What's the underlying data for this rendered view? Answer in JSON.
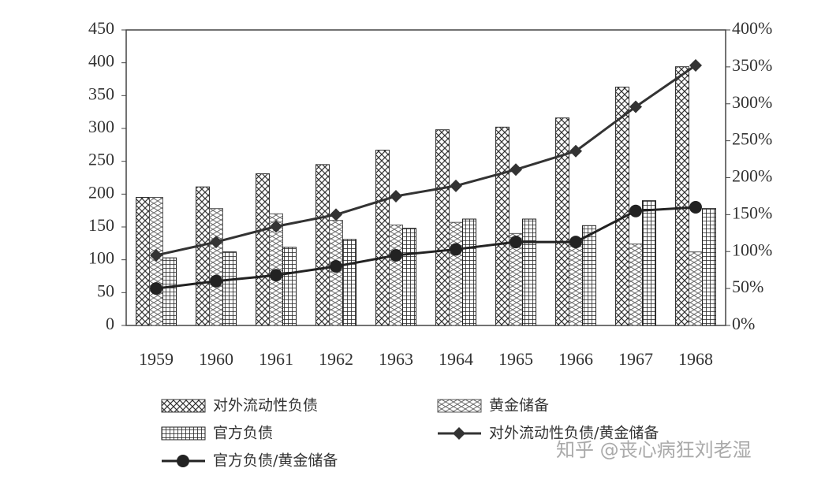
{
  "chart_data": {
    "type": "bar",
    "categories": [
      "1959",
      "1960",
      "1961",
      "1962",
      "1963",
      "1964",
      "1965",
      "1966",
      "1967",
      "1968"
    ],
    "series": [
      {
        "name": "对外流动性负债",
        "color": "#333333",
        "values": [
          195,
          211,
          231,
          245,
          267,
          298,
          302,
          316,
          363,
          394
        ]
      },
      {
        "name": "黄金储备",
        "color": "#555555",
        "values": [
          195,
          178,
          170,
          160,
          153,
          157,
          140,
          130,
          124,
          112
        ]
      },
      {
        "name": "官方负债",
        "color": "#222222",
        "values": [
          103,
          112,
          119,
          131,
          148,
          162,
          162,
          152,
          190,
          178
        ]
      },
      {
        "name": "对外流动性负债/黄金储备",
        "type": "line",
        "marker": "diamond",
        "axis": "y2",
        "color": "#333333",
        "values": [
          95,
          113,
          134,
          150,
          175,
          189,
          211,
          236,
          296,
          352
        ]
      },
      {
        "name": "官方负债/黄金储备",
        "type": "line",
        "marker": "circle",
        "axis": "y2",
        "color": "#222222",
        "values": [
          50,
          60,
          68,
          80,
          95,
          103,
          113,
          113,
          155,
          160
        ]
      }
    ],
    "ylim": [
      0,
      450
    ],
    "yticks": [
      0,
      50,
      100,
      150,
      200,
      250,
      300,
      350,
      400,
      450
    ],
    "y2lim": [
      0,
      400
    ],
    "y2ticks": [
      {
        "value": 0,
        "label": "0%"
      },
      {
        "value": 50,
        "label": "50%"
      },
      {
        "value": 100,
        "label": "100%"
      },
      {
        "value": 150,
        "label": "150%"
      },
      {
        "value": 200,
        "label": "200%"
      },
      {
        "value": 250,
        "label": "250%"
      },
      {
        "value": 300,
        "label": "300%"
      },
      {
        "value": 350,
        "label": "350%"
      },
      {
        "value": 400,
        "label": "400%"
      }
    ],
    "watermark": "知乎 @丧心病狂刘老湿"
  }
}
